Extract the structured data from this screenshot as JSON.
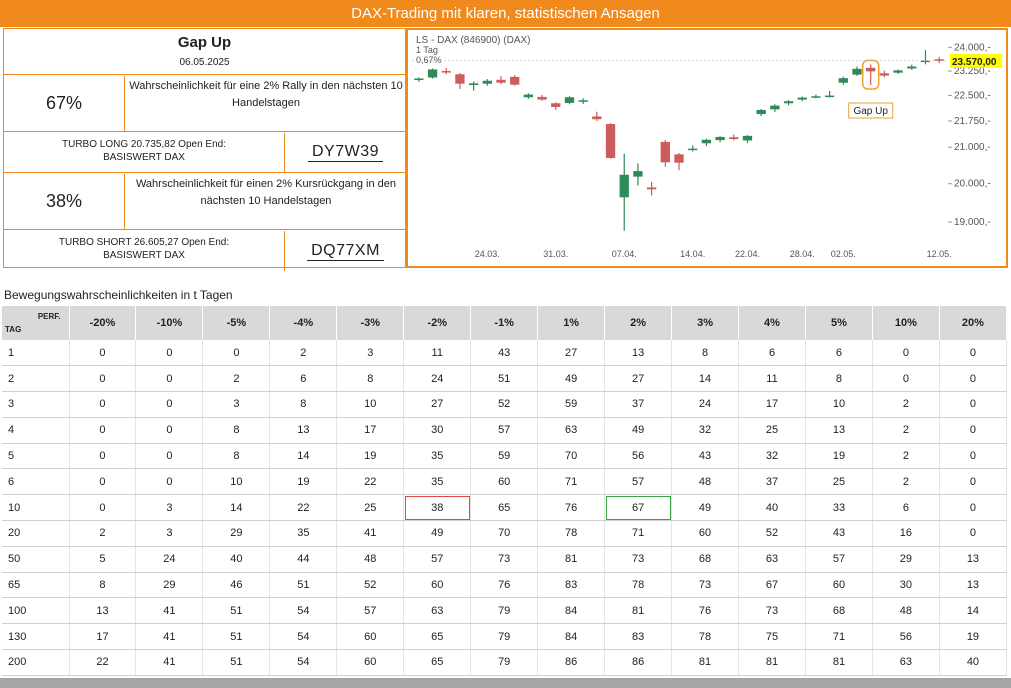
{
  "banner": "DAX-Trading mit klaren, statistischen Ansagen",
  "panel": {
    "title": "Gap Up",
    "date": "06.05.2025",
    "long": {
      "prob": "67%",
      "desc": "Wahrscheinlichkeit für eine 2% Rally in den nächsten 10 Handelstagen",
      "turbo_line1": "TURBO LONG 20.735,82 Open End:",
      "turbo_line2": "BASISWERT DAX",
      "wkn": "DY7W39"
    },
    "short": {
      "prob": "38%",
      "desc": "Wahrscheinlichkeit für einen 2% Kursrückgang in den nächsten 10 Handelstagen",
      "turbo_line1": "TURBO SHORT 26.605,27 Open End:",
      "turbo_line2": "BASISWERT DAX",
      "wkn": "DQ77XM"
    }
  },
  "chart": {
    "header_line1": "LS - DAX (846900) (DAX)",
    "header_line2": "1 Tag",
    "header_line3": "0,67%",
    "annotation": "Gap Up",
    "last_price": "23.570,00",
    "colors": {
      "up": "#2e8b57",
      "down": "#cd5c5c",
      "annotation": "#f0a030",
      "price_tag": "#ffff00",
      "axis_text": "#555555"
    }
  },
  "chart_data": {
    "type": "candlestick",
    "y_scale": "log",
    "ylim": [
      18600,
      24300
    ],
    "y_ticks": [
      {
        "value": 24000,
        "label": "24.000,-"
      },
      {
        "value": 23250,
        "label": "23.250,-"
      },
      {
        "value": 22500,
        "label": "22.500,-"
      },
      {
        "value": 21750,
        "label": "21.750,-"
      },
      {
        "value": 21000,
        "label": "21.000,-"
      },
      {
        "value": 20000,
        "label": "20.000,-"
      },
      {
        "value": 19000,
        "label": "19.000,-"
      }
    ],
    "x_ticks": [
      {
        "index": 5,
        "label": "24.03."
      },
      {
        "index": 10,
        "label": "31.03."
      },
      {
        "index": 15,
        "label": "07.04."
      },
      {
        "index": 20,
        "label": "14.04."
      },
      {
        "index": 24,
        "label": "22.04."
      },
      {
        "index": 28,
        "label": "28.04."
      },
      {
        "index": 31,
        "label": "02.05."
      },
      {
        "index": 38,
        "label": "12.05."
      }
    ],
    "annotated_index": 33,
    "candles": [
      {
        "o": 22980,
        "h": 23050,
        "l": 22920,
        "c": 23020
      },
      {
        "o": 23050,
        "h": 23330,
        "l": 23020,
        "c": 23300
      },
      {
        "o": 23250,
        "h": 23350,
        "l": 23150,
        "c": 23220
      },
      {
        "o": 23150,
        "h": 23190,
        "l": 22700,
        "c": 22860
      },
      {
        "o": 22820,
        "h": 22930,
        "l": 22650,
        "c": 22870
      },
      {
        "o": 22860,
        "h": 23000,
        "l": 22800,
        "c": 22950
      },
      {
        "o": 22980,
        "h": 23090,
        "l": 22850,
        "c": 22890
      },
      {
        "o": 23070,
        "h": 23120,
        "l": 22800,
        "c": 22830
      },
      {
        "o": 22450,
        "h": 22570,
        "l": 22400,
        "c": 22530
      },
      {
        "o": 22460,
        "h": 22520,
        "l": 22340,
        "c": 22380
      },
      {
        "o": 22270,
        "h": 22300,
        "l": 22070,
        "c": 22160
      },
      {
        "o": 22280,
        "h": 22480,
        "l": 22240,
        "c": 22450
      },
      {
        "o": 22360,
        "h": 22420,
        "l": 22250,
        "c": 22360
      },
      {
        "o": 21880,
        "h": 22020,
        "l": 21750,
        "c": 21800
      },
      {
        "o": 21660,
        "h": 21690,
        "l": 20680,
        "c": 20700
      },
      {
        "o": 19640,
        "h": 20820,
        "l": 18780,
        "c": 20240
      },
      {
        "o": 20190,
        "h": 20550,
        "l": 19950,
        "c": 20340
      },
      {
        "o": 19900,
        "h": 20050,
        "l": 19690,
        "c": 19850
      },
      {
        "o": 21150,
        "h": 21200,
        "l": 20460,
        "c": 20580
      },
      {
        "o": 20800,
        "h": 20840,
        "l": 20360,
        "c": 20570
      },
      {
        "o": 20930,
        "h": 21050,
        "l": 20880,
        "c": 20960
      },
      {
        "o": 21110,
        "h": 21240,
        "l": 21030,
        "c": 21210
      },
      {
        "o": 21200,
        "h": 21310,
        "l": 21140,
        "c": 21290
      },
      {
        "o": 21280,
        "h": 21360,
        "l": 21190,
        "c": 21230
      },
      {
        "o": 21190,
        "h": 21340,
        "l": 21120,
        "c": 21320
      },
      {
        "o": 21950,
        "h": 22100,
        "l": 21890,
        "c": 22070
      },
      {
        "o": 22090,
        "h": 22240,
        "l": 22010,
        "c": 22200
      },
      {
        "o": 22270,
        "h": 22370,
        "l": 22210,
        "c": 22330
      },
      {
        "o": 22380,
        "h": 22470,
        "l": 22330,
        "c": 22440
      },
      {
        "o": 22460,
        "h": 22530,
        "l": 22420,
        "c": 22480
      },
      {
        "o": 22490,
        "h": 22640,
        "l": 22440,
        "c": 22500
      },
      {
        "o": 22890,
        "h": 23080,
        "l": 22830,
        "c": 23030
      },
      {
        "o": 23140,
        "h": 23390,
        "l": 23100,
        "c": 23320
      },
      {
        "o": 23350,
        "h": 23460,
        "l": 22820,
        "c": 23240
      },
      {
        "o": 23180,
        "h": 23260,
        "l": 23060,
        "c": 23110
      },
      {
        "o": 23200,
        "h": 23300,
        "l": 23160,
        "c": 23270
      },
      {
        "o": 23330,
        "h": 23450,
        "l": 23290,
        "c": 23390
      },
      {
        "o": 23540,
        "h": 23910,
        "l": 23460,
        "c": 23580
      },
      {
        "o": 23620,
        "h": 23700,
        "l": 23500,
        "c": 23570
      }
    ]
  },
  "table": {
    "section_title": "Bewegungswahrscheinlichkeiten in t Tagen",
    "corner_tag": "TAG",
    "corner_perf": "PERF.",
    "headers": [
      "-20%",
      "-10%",
      "-5%",
      "-4%",
      "-3%",
      "-2%",
      "-1%",
      "1%",
      "2%",
      "3%",
      "4%",
      "5%",
      "10%",
      "20%"
    ],
    "rows": [
      {
        "tag": "1",
        "vals": [
          "0",
          "0",
          "0",
          "2",
          "3",
          "11",
          "43",
          "27",
          "13",
          "8",
          "6",
          "6",
          "0",
          "0"
        ]
      },
      {
        "tag": "2",
        "vals": [
          "0",
          "0",
          "2",
          "6",
          "8",
          "24",
          "51",
          "49",
          "27",
          "14",
          "11",
          "8",
          "0",
          "0"
        ]
      },
      {
        "tag": "3",
        "vals": [
          "0",
          "0",
          "3",
          "8",
          "10",
          "27",
          "52",
          "59",
          "37",
          "24",
          "17",
          "10",
          "2",
          "0"
        ]
      },
      {
        "tag": "4",
        "vals": [
          "0",
          "0",
          "8",
          "13",
          "17",
          "30",
          "57",
          "63",
          "49",
          "32",
          "25",
          "13",
          "2",
          "0"
        ]
      },
      {
        "tag": "5",
        "vals": [
          "0",
          "0",
          "8",
          "14",
          "19",
          "35",
          "59",
          "70",
          "56",
          "43",
          "32",
          "19",
          "2",
          "0"
        ]
      },
      {
        "tag": "6",
        "vals": [
          "0",
          "0",
          "10",
          "19",
          "22",
          "35",
          "60",
          "71",
          "57",
          "48",
          "37",
          "25",
          "2",
          "0"
        ]
      },
      {
        "tag": "10",
        "vals": [
          "0",
          "3",
          "14",
          "22",
          "25",
          "38",
          "65",
          "76",
          "67",
          "49",
          "40",
          "33",
          "6",
          "0"
        ]
      },
      {
        "tag": "20",
        "vals": [
          "2",
          "3",
          "29",
          "35",
          "41",
          "49",
          "70",
          "78",
          "71",
          "60",
          "52",
          "43",
          "16",
          "0"
        ]
      },
      {
        "tag": "50",
        "vals": [
          "5",
          "24",
          "40",
          "44",
          "48",
          "57",
          "73",
          "81",
          "73",
          "68",
          "63",
          "57",
          "29",
          "13"
        ]
      },
      {
        "tag": "65",
        "vals": [
          "8",
          "29",
          "46",
          "51",
          "52",
          "60",
          "76",
          "83",
          "78",
          "73",
          "67",
          "60",
          "30",
          "13"
        ]
      },
      {
        "tag": "100",
        "vals": [
          "13",
          "41",
          "51",
          "54",
          "57",
          "63",
          "79",
          "84",
          "81",
          "76",
          "73",
          "68",
          "48",
          "14"
        ]
      },
      {
        "tag": "130",
        "vals": [
          "17",
          "41",
          "51",
          "54",
          "60",
          "65",
          "79",
          "84",
          "83",
          "78",
          "75",
          "71",
          "56",
          "19"
        ]
      },
      {
        "tag": "200",
        "vals": [
          "22",
          "41",
          "51",
          "54",
          "60",
          "65",
          "79",
          "86",
          "86",
          "81",
          "81",
          "81",
          "63",
          "40"
        ]
      }
    ],
    "highlight_red": {
      "row": "10",
      "col": "-2%"
    },
    "highlight_green": {
      "row": "10",
      "col": "2%"
    }
  }
}
